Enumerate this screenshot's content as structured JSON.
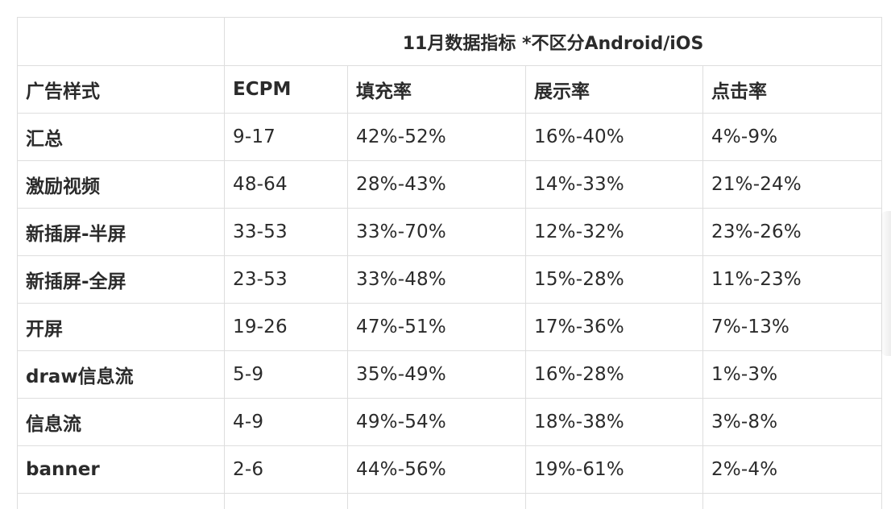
{
  "table": {
    "title": "11月数据指标 *不区分Android/iOS",
    "columns": [
      "广告样式",
      "ECPM",
      "填充率",
      "展示率",
      "点击率"
    ],
    "rows": [
      [
        "汇总",
        "9-17",
        "42%-52%",
        "16%-40%",
        "4%-9%"
      ],
      [
        "激励视频",
        "48-64",
        "28%-43%",
        "14%-33%",
        "21%-24%"
      ],
      [
        "新插屏-半屏",
        "33-53",
        "33%-70%",
        "12%-32%",
        "23%-26%"
      ],
      [
        "新插屏-全屏",
        "23-53",
        "33%-48%",
        "15%-28%",
        "11%-23%"
      ],
      [
        "开屏",
        "19-26",
        "47%-51%",
        "17%-36%",
        "7%-13%"
      ],
      [
        "draw信息流",
        "5-9",
        "35%-49%",
        "16%-28%",
        "1%-3%"
      ],
      [
        "信息流",
        "4-9",
        "49%-54%",
        "18%-38%",
        "3%-8%"
      ],
      [
        "banner",
        "2-6",
        "44%-56%",
        "19%-61%",
        "2%-4%"
      ]
    ]
  }
}
